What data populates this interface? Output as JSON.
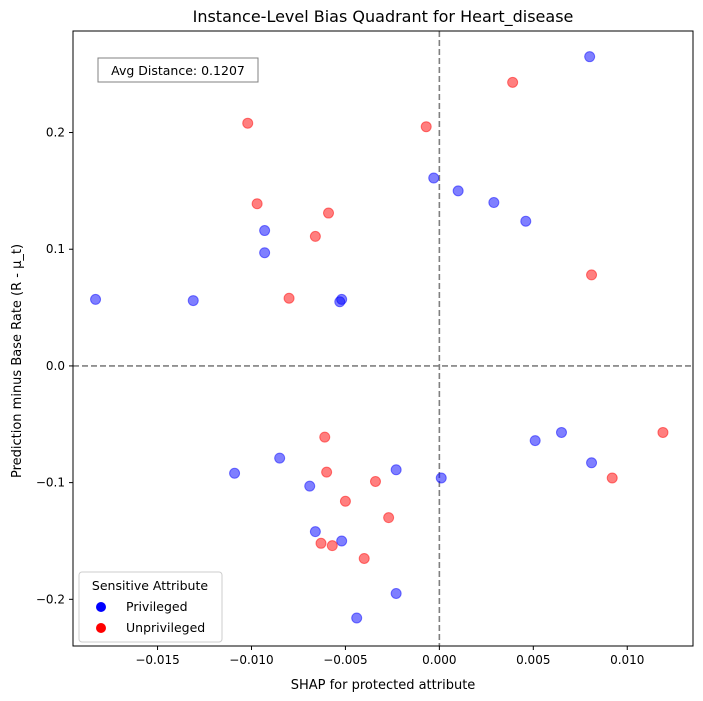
{
  "chart_data": {
    "type": "scatter",
    "title": "Instance-Level Bias Quadrant for Heart_disease",
    "xlabel": "SHAP for protected attribute",
    "ylabel": "Prediction minus Base Rate (R - μ_t)",
    "xlim": [
      -0.0195,
      0.0135
    ],
    "ylim": [
      -0.24,
      0.287
    ],
    "x_ticks": [
      -0.015,
      -0.01,
      -0.005,
      0.0,
      0.005,
      0.01
    ],
    "x_tick_labels": [
      "−0.015",
      "−0.010",
      "−0.005",
      "0.000",
      "0.005",
      "0.010"
    ],
    "y_ticks": [
      -0.2,
      -0.1,
      0.0,
      0.1,
      0.2
    ],
    "y_tick_labels": [
      "−0.2",
      "−0.1",
      "0.0",
      "0.1",
      "0.2"
    ],
    "grid": false,
    "reference_lines": {
      "x": 0.0,
      "y": 0.0,
      "style": "dashed",
      "color": "#808080"
    },
    "annotation": "Avg Distance: 0.1207",
    "legend": {
      "title": "Sensitive Attribute",
      "placement": "lower-left",
      "entries": [
        {
          "label": "Privileged",
          "color": "#0000ff"
        },
        {
          "label": "Unprivileged",
          "color": "#ff0000"
        }
      ]
    },
    "series": [
      {
        "name": "Privileged",
        "color": "#0000ff",
        "points": [
          [
            -0.0183,
            0.057
          ],
          [
            -0.0131,
            0.056
          ],
          [
            -0.0093,
            0.116
          ],
          [
            -0.0093,
            0.097
          ],
          [
            -0.0053,
            0.055
          ],
          [
            -0.0052,
            0.057
          ],
          [
            -0.0003,
            0.161
          ],
          [
            0.001,
            0.15
          ],
          [
            0.0029,
            0.14
          ],
          [
            0.0046,
            0.124
          ],
          [
            0.008,
            0.265
          ],
          [
            0.0051,
            -0.064
          ],
          [
            0.0065,
            -0.057
          ],
          [
            0.0081,
            -0.083
          ],
          [
            0.0001,
            -0.096
          ],
          [
            -0.0023,
            -0.089
          ],
          [
            -0.0085,
            -0.079
          ],
          [
            -0.0109,
            -0.092
          ],
          [
            -0.0069,
            -0.103
          ],
          [
            -0.0066,
            -0.142
          ],
          [
            -0.0052,
            -0.15
          ],
          [
            -0.0023,
            -0.195
          ],
          [
            -0.0044,
            -0.216
          ]
        ]
      },
      {
        "name": "Unprivileged",
        "color": "#ff0000",
        "points": [
          [
            -0.0102,
            0.208
          ],
          [
            -0.0097,
            0.139
          ],
          [
            -0.0059,
            0.131
          ],
          [
            -0.0066,
            0.111
          ],
          [
            -0.008,
            0.058
          ],
          [
            -0.0007,
            0.205
          ],
          [
            0.0039,
            0.243
          ],
          [
            0.0081,
            0.078
          ],
          [
            0.0119,
            -0.057
          ],
          [
            0.0092,
            -0.096
          ],
          [
            -0.0061,
            -0.061
          ],
          [
            -0.006,
            -0.091
          ],
          [
            -0.0034,
            -0.099
          ],
          [
            -0.005,
            -0.116
          ],
          [
            -0.0027,
            -0.13
          ],
          [
            -0.0063,
            -0.152
          ],
          [
            -0.0057,
            -0.154
          ],
          [
            -0.004,
            -0.165
          ]
        ]
      }
    ]
  }
}
